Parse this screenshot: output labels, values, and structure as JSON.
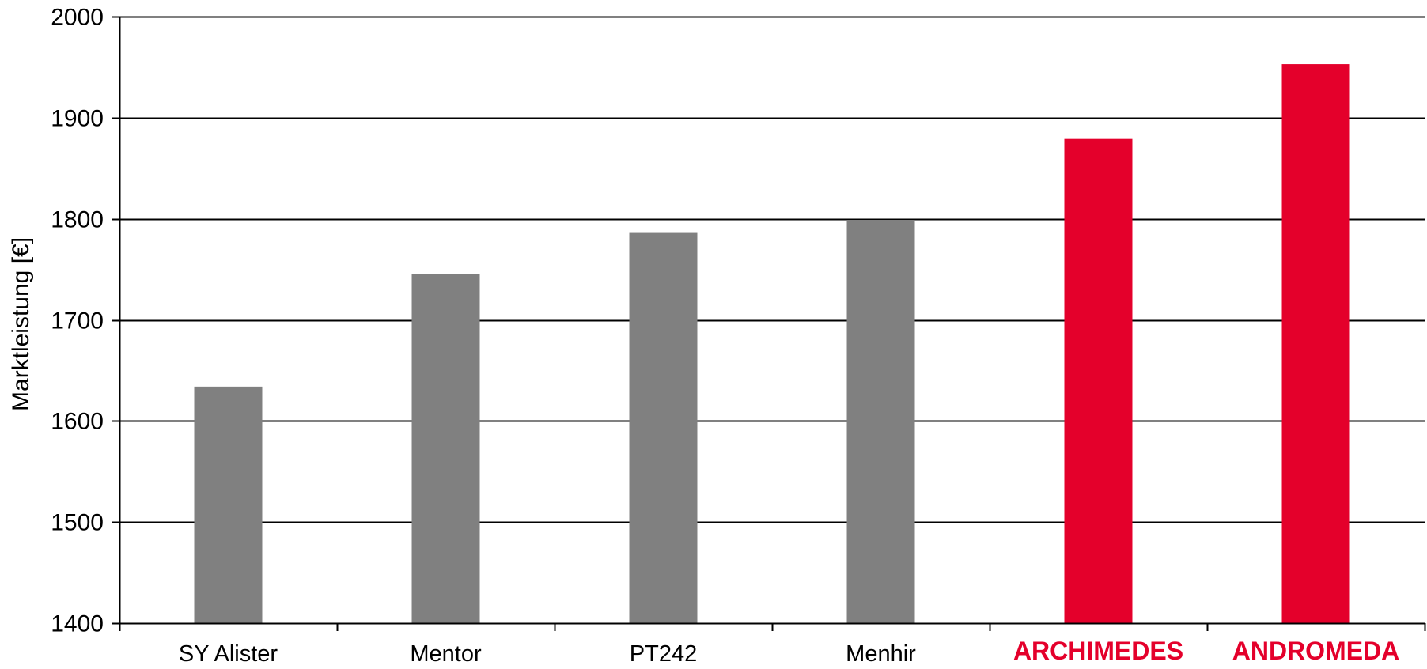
{
  "chart_data": {
    "type": "bar",
    "title": "",
    "xlabel": "",
    "ylabel": "Marktleistung [€]",
    "ylim": [
      1400,
      2000
    ],
    "yticks": [
      1400,
      1500,
      1600,
      1700,
      1800,
      1900,
      2000
    ],
    "grid": true,
    "categories": [
      "SY Alister",
      "Mentor",
      "PT242",
      "Menhir",
      "ARCHIMEDES",
      "ANDROMEDA"
    ],
    "values": [
      1634,
      1745,
      1786,
      1798,
      1879,
      1953
    ],
    "highlighted": [
      false,
      false,
      false,
      false,
      true,
      true
    ],
    "colors": {
      "default_bar": "#808080",
      "highlight_bar": "#e4002b",
      "highlight_label": "#e4002b",
      "axis": "#000000",
      "grid": "#000000",
      "text": "#000000"
    }
  }
}
